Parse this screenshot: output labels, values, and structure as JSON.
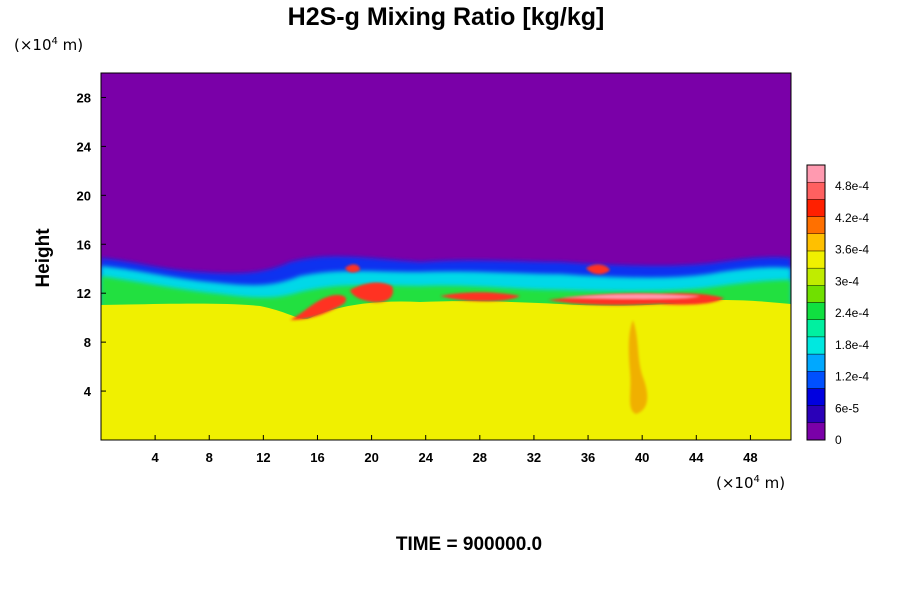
{
  "chart_data": {
    "type": "heatmap",
    "title": "H2S-g Mixing Ratio [kg/kg]",
    "xlabel": "",
    "ylabel": "Height",
    "x_unit": "(×10",
    "x_unit_exp": "4",
    "x_unit_tail": " m)",
    "y_unit": "(×10",
    "y_unit_exp": "4",
    "y_unit_tail": " m)",
    "xlim": [
      0,
      51
    ],
    "ylim": [
      0,
      30
    ],
    "x_ticks": [
      4,
      8,
      12,
      16,
      20,
      24,
      28,
      32,
      36,
      40,
      44,
      48
    ],
    "y_ticks": [
      4,
      8,
      12,
      16,
      20,
      24,
      28
    ],
    "colorbar": {
      "labels": [
        "0",
        "6e-5",
        "1.2e-4",
        "1.8e-4",
        "2.4e-4",
        "3e-4",
        "3.6e-4",
        "4.2e-4",
        "4.8e-4"
      ],
      "label_values": [
        0,
        6e-05,
        0.00012,
        0.00018,
        0.00024,
        0.0003,
        0.00036,
        0.00042,
        0.00048
      ],
      "range": [
        0,
        0.00052
      ],
      "colors": [
        "#7a00a8",
        "#2a00b8",
        "#0000e0",
        "#0050ff",
        "#00a8ff",
        "#00e8e0",
        "#00f0a0",
        "#10e040",
        "#70e000",
        "#c0ec00",
        "#f0f000",
        "#ffc000",
        "#ff7000",
        "#ff2000",
        "#ff6060",
        "#ff9ab0"
      ]
    },
    "field_description_values": {
      "upper_background": 0,
      "lower_background": 0.00034
    },
    "time_label": "TIME = 900000.0",
    "grid": false
  }
}
